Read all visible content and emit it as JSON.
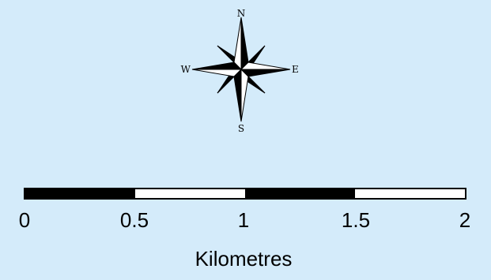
{
  "colors": {
    "background": "#d4ebfa",
    "ink": "#000000",
    "light": "#ffffff"
  },
  "north_arrow": {
    "icon": "compass-rose-icon",
    "n": "N",
    "e": "E",
    "s": "S",
    "w": "W"
  },
  "scale_bar": {
    "segments": [
      "dark",
      "light",
      "dark",
      "light"
    ],
    "ticks": [
      "0",
      "0.5",
      "1",
      "1.5",
      "2"
    ],
    "units": "Kilometres"
  }
}
